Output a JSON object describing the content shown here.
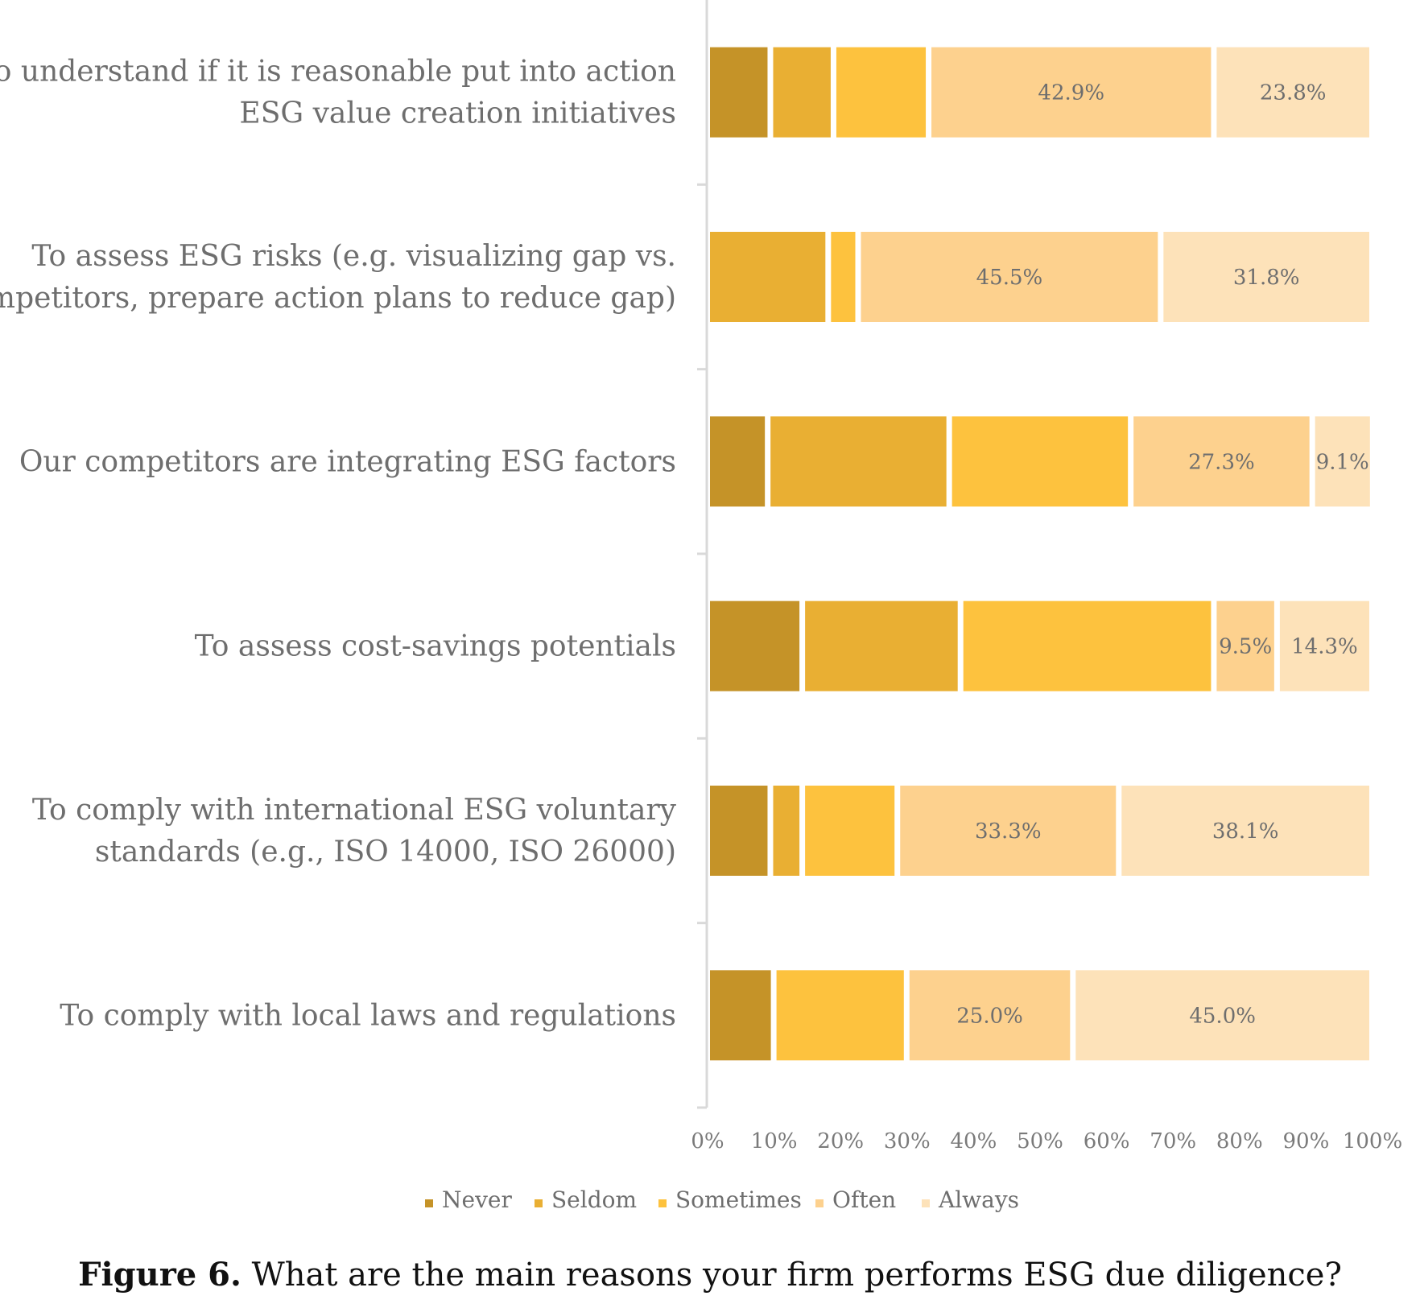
{
  "chart_data": {
    "type": "bar",
    "orientation": "horizontal",
    "stacked": "100%",
    "categories": [
      [
        "To understand if it is reasonable put into action",
        "ESG value creation initiatives"
      ],
      [
        "To assess ESG risks (e.g. visualizing gap vs.",
        "competitors, prepare action plans to reduce gap)"
      ],
      [
        "Our competitors are integrating ESG factors"
      ],
      [
        "To assess cost-savings potentials"
      ],
      [
        "To comply with international ESG voluntary",
        "standards (e.g., ISO 14000, ISO 26000)"
      ],
      [
        "To comply with local laws and regulations"
      ]
    ],
    "series": [
      {
        "name": "Never",
        "color": "#C59328",
        "values": [
          9.5,
          0,
          9.1,
          14.3,
          9.5,
          10.0
        ],
        "labels": [
          "",
          "",
          "",
          "",
          "",
          ""
        ]
      },
      {
        "name": "Seldom",
        "color": "#E9AF33",
        "values": [
          9.5,
          18.2,
          27.3,
          23.8,
          4.8,
          0
        ],
        "labels": [
          "",
          "",
          "",
          "",
          "",
          ""
        ]
      },
      {
        "name": "Sometimes",
        "color": "#FDC23E",
        "values": [
          14.3,
          4.5,
          27.3,
          38.1,
          14.3,
          20.0
        ],
        "labels": [
          "",
          "",
          "",
          "",
          "",
          ""
        ]
      },
      {
        "name": "Often",
        "color": "#FDD18E",
        "values": [
          42.9,
          45.5,
          27.3,
          9.5,
          33.3,
          25.0
        ],
        "labels": [
          "42.9%",
          "45.5%",
          "27.3%",
          "9.5%",
          "33.3%",
          "25.0%"
        ]
      },
      {
        "name": "Always",
        "color": "#FDE2B9",
        "values": [
          23.8,
          31.8,
          9.1,
          14.3,
          38.1,
          45.0
        ],
        "labels": [
          "23.8%",
          "31.8%",
          "9.1%",
          "14.3%",
          "38.1%",
          "45.0%"
        ]
      }
    ],
    "xlim": [
      0,
      100
    ],
    "xticks": [
      "0%",
      "10%",
      "20%",
      "30%",
      "40%",
      "50%",
      "60%",
      "70%",
      "80%",
      "90%",
      "100%"
    ],
    "grid": false,
    "legend": "bottom"
  },
  "caption": {
    "label": "Figure 6.",
    "text": "What are the main reasons your firm performs ESG due diligence?"
  }
}
